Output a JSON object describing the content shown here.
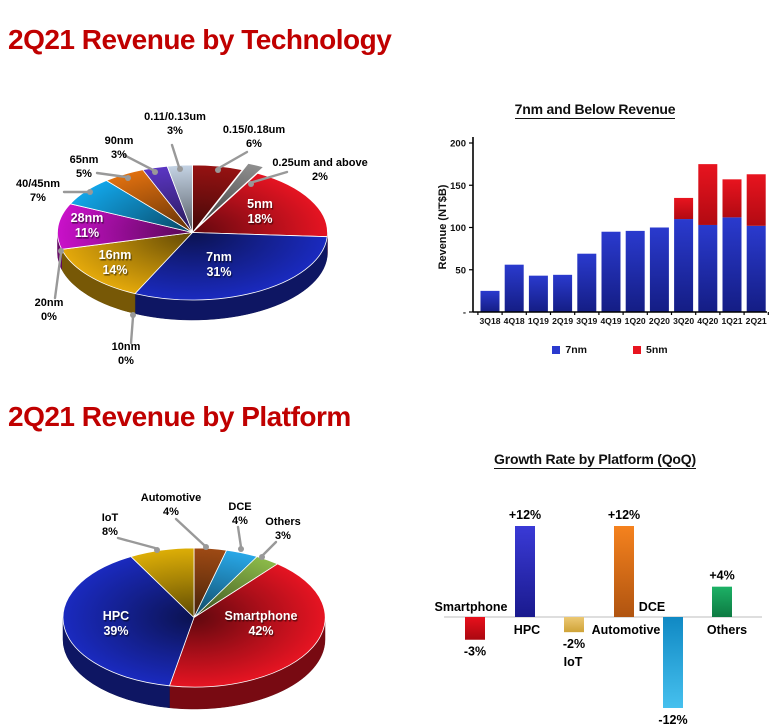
{
  "titles": {
    "technology": "2Q21 Revenue by Technology",
    "platform": "2Q21 Revenue by Platform"
  },
  "title_color": "#c00000",
  "chart_data": [
    {
      "id": "revenue-by-technology",
      "type": "pie",
      "start_angle": "top",
      "direction": "clockwise",
      "slices": [
        {
          "label": "0.15/0.18um",
          "value": 6,
          "value_label": "6%",
          "color": "#961212"
        },
        {
          "label": "0.25um and above",
          "value": 2,
          "value_label": "2%",
          "color": "#8f8f8f",
          "exploded": true
        },
        {
          "label": "5nm",
          "value": 18,
          "value_label": "18%",
          "color": "#e61422",
          "label_inside": true
        },
        {
          "label": "7nm",
          "value": 31,
          "value_label": "31%",
          "color": "#1a2abf",
          "label_inside": true
        },
        {
          "label": "16nm",
          "value": 14,
          "value_label": "14%",
          "color": "#e4a90b",
          "label_inside": true
        },
        {
          "label": "28nm",
          "value": 11,
          "value_label": "11%",
          "color": "#c911c9",
          "label_inside": true
        },
        {
          "label": "40/45nm",
          "value": 7,
          "value_label": "7%",
          "color": "#12a5e8"
        },
        {
          "label": "65nm",
          "value": 5,
          "value_label": "5%",
          "color": "#e0700f"
        },
        {
          "label": "90nm",
          "value": 3,
          "value_label": "3%",
          "color": "#5b36c4"
        },
        {
          "label": "0.11/0.13um",
          "value": 3,
          "value_label": "3%",
          "color": "#c4d3e4"
        },
        {
          "label": "20nm",
          "value": 0,
          "value_label": "0%"
        },
        {
          "label": "10nm",
          "value": 0,
          "value_label": "0%"
        }
      ]
    },
    {
      "id": "7nm-and-below-revenue",
      "type": "bar",
      "title": "7nm and Below Revenue",
      "ylabel": "Revenue (NT$B)",
      "ylim": [
        0,
        200
      ],
      "yticks": [
        {
          "v": 200,
          "label": "200"
        },
        {
          "v": 150,
          "label": "150"
        },
        {
          "v": 100,
          "label": "100"
        },
        {
          "v": 50,
          "label": "50"
        },
        {
          "v": 0,
          "label": "-"
        }
      ],
      "categories": [
        "3Q18",
        "4Q18",
        "1Q19",
        "2Q19",
        "3Q19",
        "4Q19",
        "1Q20",
        "2Q20",
        "3Q20",
        "4Q20",
        "1Q21",
        "2Q21"
      ],
      "series": [
        {
          "name": "7nm",
          "color": "#2a3ace",
          "color_dark": "#141d84",
          "values": [
            25,
            56,
            43,
            44,
            69,
            95,
            96,
            100,
            110,
            103,
            112,
            102
          ]
        },
        {
          "name": "5nm",
          "color": "#e8141f",
          "color_dark": "#b20a12",
          "values": [
            0,
            0,
            0,
            0,
            0,
            0,
            0,
            0,
            25,
            72,
            45,
            61
          ]
        }
      ],
      "stacked": true,
      "legend_position": "bottom"
    },
    {
      "id": "revenue-by-platform",
      "type": "pie",
      "start_angle": "top",
      "direction": "clockwise",
      "slices": [
        {
          "label": "Automotive",
          "value": 4,
          "value_label": "4%",
          "color": "#9e4a14"
        },
        {
          "label": "DCE",
          "value": 4,
          "value_label": "4%",
          "color": "#28a8e8"
        },
        {
          "label": "Others",
          "value": 3,
          "value_label": "3%",
          "color": "#8cba49"
        },
        {
          "label": "Smartphone",
          "value": 42,
          "value_label": "42%",
          "color": "#e61422",
          "label_inside": true
        },
        {
          "label": "HPC",
          "value": 39,
          "value_label": "39%",
          "color": "#1a2abf",
          "label_inside": true
        },
        {
          "label": "IoT",
          "value": 8,
          "value_label": "8%",
          "color": "#ddae06"
        }
      ]
    },
    {
      "id": "growth-rate-by-platform-qoq",
      "type": "bar",
      "title": "Growth Rate by Platform (QoQ)",
      "categories": [
        "Smartphone",
        "HPC",
        "IoT",
        "Automotive",
        "DCE",
        "Others"
      ],
      "values": [
        -3,
        12,
        -2,
        12,
        -12,
        4
      ],
      "value_labels": [
        "-3%",
        "+12%",
        "-2%",
        "+12%",
        "-12%",
        "+4%"
      ],
      "bar_colors": [
        {
          "top": "#e8101c",
          "bottom": "#aa0810"
        },
        {
          "top": "#3a3ad6",
          "bottom": "#1a1a8e"
        },
        {
          "top": "#ecc873",
          "bottom": "#cfa338"
        },
        {
          "top": "#f5821e",
          "bottom": "#b05410"
        },
        {
          "top": "#1089c4",
          "bottom": "#46c0ee"
        },
        {
          "top": "#1db166",
          "bottom": "#0d7a42"
        }
      ],
      "baseline_color": "#c9c9c9"
    }
  ]
}
